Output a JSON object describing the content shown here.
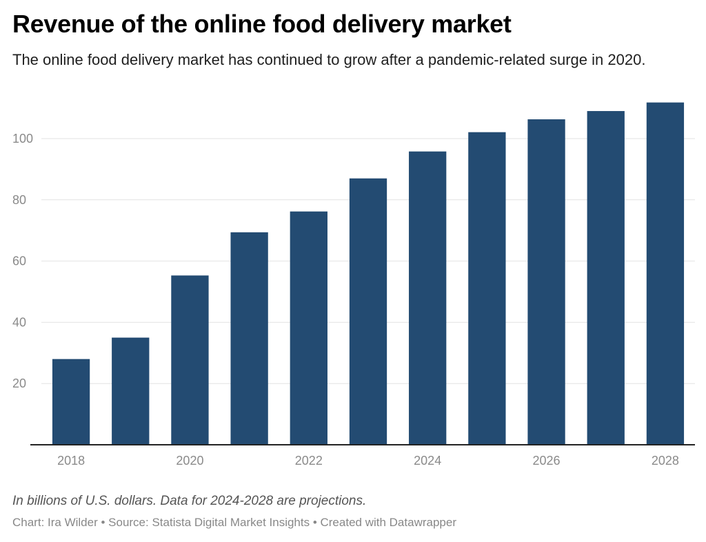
{
  "header": {
    "title": "Revenue of the online food delivery market",
    "subtitle": "The online food delivery market has continued to grow after a pandemic-related surge in 2020."
  },
  "footer": {
    "note": "In billions of U.S. dollars. Data for 2024-2028 are projections.",
    "credit": "Chart: Ira Wilder • Source: Statista Digital Market Insights • Created with Datawrapper"
  },
  "chart_data": {
    "type": "bar",
    "title": "Revenue of the online food delivery market",
    "subtitle": "The online food delivery market has continued to grow after a pandemic-related surge in 2020.",
    "xlabel": "",
    "ylabel": "",
    "categories": [
      "2018",
      "2019",
      "2020",
      "2021",
      "2022",
      "2023",
      "2024",
      "2025",
      "2026",
      "2027",
      "2028"
    ],
    "values": [
      28,
      35,
      55.3,
      69.4,
      76.2,
      87,
      95.8,
      102.1,
      106.3,
      109,
      111.8
    ],
    "x_tick_labels": [
      "2018",
      "2020",
      "2022",
      "2024",
      "2026",
      "2028"
    ],
    "y_ticks": [
      20,
      40,
      60,
      80,
      100
    ],
    "ylim": [
      0,
      115
    ],
    "grid": true,
    "legend": "none",
    "bar_color": "#234b72"
  }
}
